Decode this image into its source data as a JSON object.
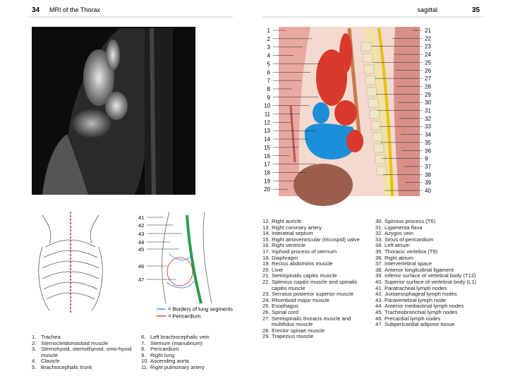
{
  "header": {
    "left_page_number": "34",
    "left_title": "MRI of the Thorax",
    "right_title": "sagittal",
    "right_page_number": "35"
  },
  "callouts": {
    "left": [
      "1",
      "2",
      "3",
      "4",
      "5",
      "6",
      "7",
      "8",
      "9",
      "10",
      "11",
      "12",
      "13",
      "14",
      "15",
      "16",
      "17",
      "18",
      "19",
      "20"
    ],
    "right": [
      "21",
      "22",
      "23",
      "24",
      "25",
      "26",
      "27",
      "28",
      "29",
      "30",
      "31",
      "32",
      "33",
      "34",
      "35",
      "36",
      "9",
      "37",
      "38",
      "39",
      "40"
    ],
    "small": [
      "41",
      "42",
      "43",
      "44",
      "45",
      "46",
      "47"
    ]
  },
  "diagram_legend": [
    "= Borders of lung segments",
    "= Pericardium"
  ],
  "legend": {
    "columns": [
      [
        {
          "number": "1.",
          "text": "Trachea"
        },
        {
          "number": "2.",
          "text": "Sternocleidomastoid muscle"
        },
        {
          "number": "3.",
          "text": "Sternohyoid, sternothyroid, omo-hyoid muscle"
        },
        {
          "number": "4.",
          "text": "Clavicle"
        },
        {
          "number": "5.",
          "text": "Brachiocephalic trunk"
        }
      ],
      [
        {
          "number": "6.",
          "text": "Left brachiocephalic vein"
        },
        {
          "number": "7.",
          "text": "Sternum (manubrium)"
        },
        {
          "number": "8.",
          "text": "Pericardium"
        },
        {
          "number": "9.",
          "text": "Right lung"
        },
        {
          "number": "10.",
          "text": "Ascending aorta"
        },
        {
          "number": "11.",
          "text": "Right pulmonary artery"
        }
      ],
      [
        {
          "number": "12.",
          "text": "Right auricle"
        },
        {
          "number": "13.",
          "text": "Right coronary artery"
        },
        {
          "number": "14.",
          "text": "Interatrial septum"
        },
        {
          "number": "15.",
          "text": "Right atrioventricular (tricuspid) valve"
        },
        {
          "number": "16.",
          "text": "Right ventricle"
        },
        {
          "number": "17.",
          "text": "Xiphoid process of sternum"
        },
        {
          "number": "18.",
          "text": "Diaphragm"
        },
        {
          "number": "19.",
          "text": "Rectus abdominis muscle"
        },
        {
          "number": "20.",
          "text": "Liver"
        },
        {
          "number": "21.",
          "text": "Semispinalis capitis muscle"
        },
        {
          "number": "22.",
          "text": "Splenius capitis muscle and spinalis capitis muscle"
        },
        {
          "number": "23.",
          "text": "Serratus posterior superior muscle"
        },
        {
          "number": "24.",
          "text": "Rhomboid major muscle"
        },
        {
          "number": "25.",
          "text": "Esophagus"
        },
        {
          "number": "26.",
          "text": "Spinal cord"
        },
        {
          "number": "27.",
          "text": "Semispinalis thoracis muscle and multifidus muscle"
        },
        {
          "number": "28.",
          "text": "Erector spinae muscle"
        },
        {
          "number": "29.",
          "text": "Trapezius muscle"
        }
      ],
      [
        {
          "number": "30.",
          "text": "Spinous process (T6)"
        },
        {
          "number": "31.",
          "text": "Ligamenta flava"
        },
        {
          "number": "32.",
          "text": "Azygos vein"
        },
        {
          "number": "33.",
          "text": "Sinus of pericardium"
        },
        {
          "number": "34.",
          "text": "Left atrium"
        },
        {
          "number": "35.",
          "text": "Thoracic vertebra (T9)"
        },
        {
          "number": "36.",
          "text": "Right atrium"
        },
        {
          "number": "37.",
          "text": "Intervertebral space"
        },
        {
          "number": "38.",
          "text": "Anterior longitudinal ligament"
        },
        {
          "number": "39.",
          "text": "Inferior surface of vertebral body (T12)"
        },
        {
          "number": "40.",
          "text": "Superior surface of vertebral body (L1)"
        },
        {
          "number": "41.",
          "text": "Paratracheal lymph nodes"
        },
        {
          "number": "42.",
          "text": "Juxtaesophageal lymph nodes"
        },
        {
          "number": "43.",
          "text": "Paravertebral lymph node"
        },
        {
          "number": "44.",
          "text": "Anterior mediastinal lymph nodes"
        },
        {
          "number": "45.",
          "text": "Tracheobronchial lymph nodes"
        },
        {
          "number": "46.",
          "text": "Precardial lymph nodes"
        },
        {
          "number": "47.",
          "text": "Subpericardial adipose tissue"
        }
      ]
    ]
  }
}
